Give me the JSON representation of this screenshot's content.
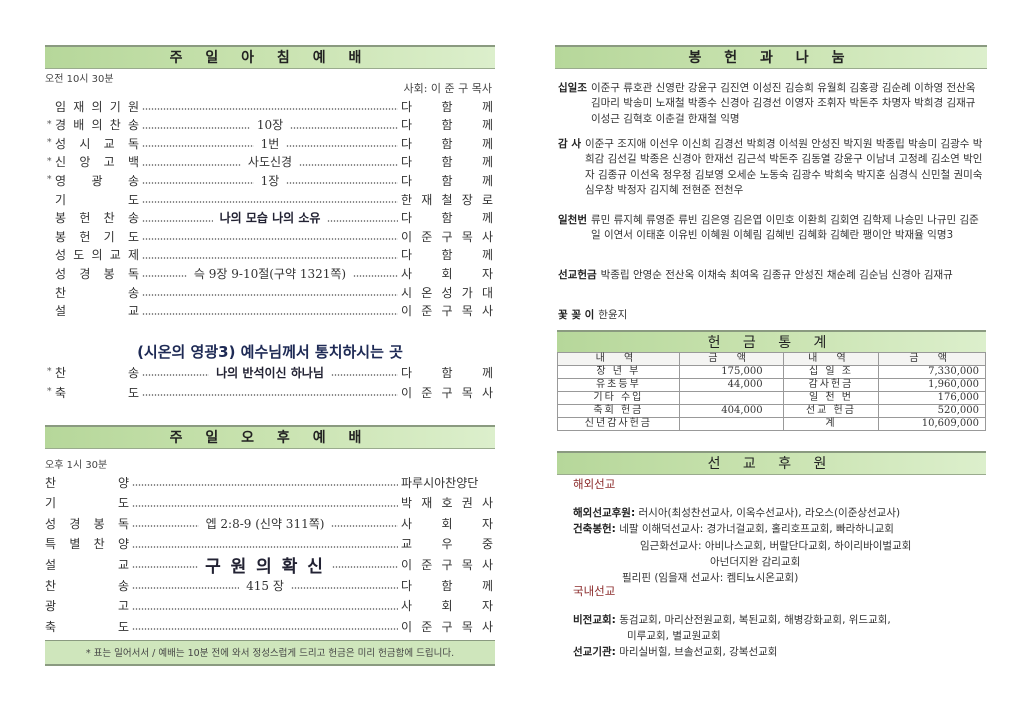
{
  "morning": {
    "title": "주 일 아 침 예 배",
    "time": "오전 10시 30분",
    "leader": "사회: 이 준 구 목사",
    "rows": [
      {
        "star": "",
        "label": "임 재 의 기 원",
        "center": "",
        "right": "다 함 께"
      },
      {
        "star": "*",
        "label": "경 배 의 찬 송",
        "center": "10장",
        "right": "다 함 께"
      },
      {
        "star": "*",
        "label": "성 시 교 독",
        "center": "1번",
        "right": "다 함 께"
      },
      {
        "star": "*",
        "label": "신 앙 고 백",
        "center": "사도신경",
        "right": "다 함 께"
      },
      {
        "star": "*",
        "label": "영 광 송",
        "center": "1장",
        "right": "다 함 께"
      },
      {
        "star": "",
        "label": "기 도",
        "center": "",
        "right": "한 재 철 장 로"
      },
      {
        "star": "",
        "label": "봉 헌 찬 송",
        "center": "나의 모습 나의 소유",
        "right": "다 함 께",
        "bold": true
      },
      {
        "star": "",
        "label": "봉 헌 기 도",
        "center": "",
        "right": "이 준 구 목 사"
      },
      {
        "star": "",
        "label": "성 도 의 교 제",
        "center": "",
        "right": "다 함 께"
      },
      {
        "star": "",
        "label": "성 경 봉 독",
        "center": "슥 9장 9-10절(구약 1321쪽)",
        "right": "사 회 자"
      },
      {
        "star": "",
        "label": "찬 송",
        "center": "",
        "right": "시 온 성 가 대"
      },
      {
        "star": "",
        "label": "설 교",
        "center": "",
        "right": "이 준 구 목 사"
      }
    ],
    "sermon": "(시온의 영광3) 예수님께서 통치하시는 곳",
    "rows2": [
      {
        "star": "*",
        "label": "찬 송",
        "center": "나의 반석이신 하나님",
        "right": "다 함 께",
        "bold": true
      },
      {
        "star": "*",
        "label": "축 도",
        "center": "",
        "right": "이 준 구 목 사"
      }
    ]
  },
  "afternoon": {
    "title": "주 일 오 후 예 배",
    "time": "오후 1시 30분",
    "rows": [
      {
        "label": "찬 양",
        "center": "",
        "right": "파루시아찬양단"
      },
      {
        "label": "기 도",
        "center": "",
        "right": "박 재 호 권 사"
      },
      {
        "label": "성 경 봉 독",
        "center": "엡 2:8-9 (신약 311쪽)",
        "right": "사 회 자"
      },
      {
        "label": "특 별 찬 양",
        "center": "",
        "right": "교 우 중"
      },
      {
        "label": "설 교",
        "center": "구 원 의 확 신",
        "right": "이 준 구 목 사",
        "big": true
      },
      {
        "label": "찬 송",
        "center": "415 장",
        "right": "다 함 께"
      },
      {
        "label": "광 고",
        "center": "",
        "right": "사 회 자"
      },
      {
        "label": "축 도",
        "center": "",
        "right": "이 준 구 목 사"
      }
    ],
    "footer": "* 표는 일어서서 / 예배는 10분 전에 와서 정성스럽게 드리고 헌금은 미리 헌금함에 드립니다."
  },
  "offering": {
    "title": "봉 헌 과 나 눔",
    "groups": [
      {
        "key": "십일조",
        "names": "이준구 류호관 신영란 강윤구 김진연 이성진 김승희 유월희 김홍광 김순례 이하영 전산옥 김마리 박송미 노재철 박종수 신경아 김경선 이영자 조휘자 박돈주 차명자 박희경 김재규 이성근 김혁호 이춘걸 한재철 익명"
      },
      {
        "key": "감  사",
        "names": "이준구 조지애 이선우 이신희 김경선 박희경 이석원 안성진 박지원 박종립 박송미 김광수 박희감 김선길 박종은 신경아 한재선 김근석 박돈주 김동열 강윤구 이남녀 고정례 김소연 박인자 김종규 이선옥 정우정 김보영 오세순 노동숙 김광수 박희숙 박지훈 심경식 신민철 권미숙 심우창 박정자 김지혜 전현준 전천우"
      },
      {
        "key": "일천번",
        "names": "류민 류지혜 류영준 류빈 김은영 김은엽 이민호 이환희 김회연 김학제 나승민 나규민 김준일 이연서 이태훈 이유빈 이혜원 이혜림 김혜빈 김혜화 김혜란 팽이안 박재율 익명3"
      },
      {
        "key": "선교헌금",
        "names": "박종립 안영순 전산옥 이채숙 최여옥 김종규 안성진 채순례 김순님 신경아 김재규"
      },
      {
        "key": "꽃 꽂 이",
        "names": "한윤지"
      }
    ]
  },
  "stats": {
    "title": "헌 금 통 계",
    "headers": [
      "내 역",
      "금 액",
      "내 역",
      "금 액"
    ],
    "rows": [
      [
        "장 년 부",
        "175,000",
        "십 일 조",
        "7,330,000"
      ],
      [
        "유초등부",
        "44,000",
        "감사헌금",
        "1,960,000"
      ],
      [
        "기타 수입",
        "",
        "일 천 번",
        "176,000"
      ],
      [
        "축회 헌금",
        "404,000",
        "선교 헌금",
        "520,000"
      ],
      [
        "신년감사헌금",
        "",
        "계",
        "10,609,000"
      ]
    ]
  },
  "mission": {
    "title": "선 교 후 원",
    "overseas": "해외선교",
    "l1k": "해외선교후원:",
    "l1": "러시아(최성찬선교사, 이옥수선교사), 라오스(이준상선교사)",
    "l2k": "건축봉헌:",
    "l2": "네팔 이해덕선교사: 경가너걸교회, 홀리호프교회, 빠라하니교회",
    "l3": "임근화선교사: 아비나스교회, 버랄단다교회, 하이리바이벌교회",
    "l4": "아넌더지완 감리교회",
    "l5": "필리핀 (임을재 선교사: 켐티뇨시온교회)",
    "domestic": "국내선교",
    "l6k": "비전교회:",
    "l6": "동검교회, 마리산전원교회, 복된교회, 해병강화교회, 위드교회,",
    "l7": "미루교회, 별교원교회",
    "l8k": "선교기관:",
    "l8": "마리실버힐, 브솔선교회, 강복선교회"
  },
  "colors": {
    "header_green": "#b6d79a",
    "footer_green": "#cfe6bc",
    "section_red": "#8b2b2b"
  }
}
